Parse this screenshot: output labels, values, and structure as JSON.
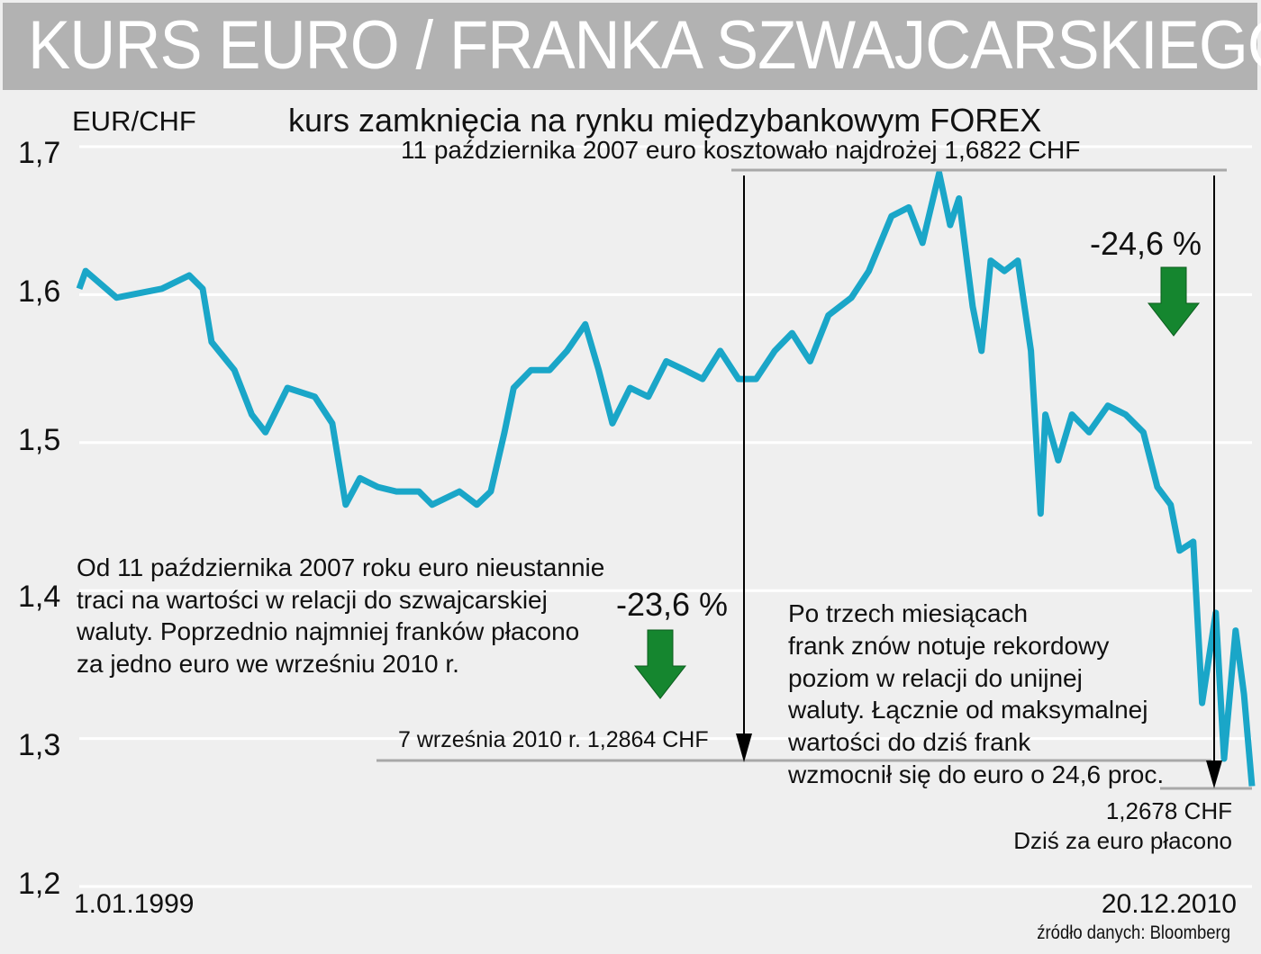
{
  "chart_data": {
    "type": "line",
    "title": "KURS EURO / FRANKA SZWAJCARSKIEGO",
    "subtitle": "kurs zamknięcia na rynku międzybankowym FOREX",
    "ylabel": "EUR/CHF",
    "ylim": [
      1.2,
      1.7
    ],
    "yticks": [
      "1,7",
      "1,6",
      "1,5",
      "1,4",
      "1,3",
      "1,2"
    ],
    "ytick_values": [
      1.7,
      1.6,
      1.5,
      1.4,
      1.3,
      1.2
    ],
    "x_start_label": "1.01.1999",
    "x_end_label": "20.12.2010",
    "xlim": [
      "1999-01-01",
      "2010-12-20"
    ],
    "grid": true,
    "line_color": "#1aa6c8",
    "series": [
      {
        "x": [
          "1999-01-01",
          "1999-01-25",
          "1999-05-20",
          "1999-11-05",
          "2000-02-15",
          "2000-04-05",
          "2000-05-08",
          "2000-08-01",
          "2000-10-05",
          "2000-11-25",
          "2001-02-15",
          "2001-05-28",
          "2001-08-01",
          "2001-09-20",
          "2001-11-12",
          "2002-01-18",
          "2002-03-28",
          "2002-06-20",
          "2002-08-08",
          "2002-11-18",
          "2003-01-22",
          "2003-03-15",
          "2003-05-05",
          "2003-06-08",
          "2003-08-12",
          "2003-10-20",
          "2003-12-24",
          "2004-03-01",
          "2004-04-20",
          "2004-06-10",
          "2004-08-15",
          "2004-10-22",
          "2004-12-28",
          "2005-03-07",
          "2005-05-12",
          "2005-07-17",
          "2005-09-23",
          "2005-11-28",
          "2006-02-05",
          "2006-04-11",
          "2006-06-17",
          "2006-08-24",
          "2006-11-18",
          "2007-01-22",
          "2007-04-16",
          "2007-06-20",
          "2007-08-10",
          "2007-10-11",
          "2007-11-21",
          "2007-12-24",
          "2008-02-13",
          "2008-03-17",
          "2008-04-20",
          "2008-06-10",
          "2008-07-30",
          "2008-09-17",
          "2008-10-23",
          "2008-11-10",
          "2008-12-28",
          "2009-02-17",
          "2009-04-22",
          "2009-07-01",
          "2009-09-05",
          "2009-11-10",
          "2010-01-01",
          "2010-02-20",
          "2010-03-25",
          "2010-05-15",
          "2010-06-17",
          "2010-08-07",
          "2010-09-07",
          "2010-10-20",
          "2010-11-20",
          "2010-12-20"
        ],
        "y": [
          1.604,
          1.616,
          1.598,
          1.604,
          1.613,
          1.604,
          1.568,
          1.549,
          1.519,
          1.507,
          1.537,
          1.531,
          1.513,
          1.458,
          1.476,
          1.47,
          1.467,
          1.467,
          1.458,
          1.467,
          1.458,
          1.467,
          1.507,
          1.537,
          1.549,
          1.549,
          1.562,
          1.58,
          1.549,
          1.513,
          1.537,
          1.531,
          1.555,
          1.549,
          1.543,
          1.562,
          1.543,
          1.543,
          1.562,
          1.574,
          1.555,
          1.586,
          1.598,
          1.616,
          1.653,
          1.659,
          1.635,
          1.6822,
          1.647,
          1.665,
          1.592,
          1.562,
          1.623,
          1.616,
          1.623,
          1.562,
          1.452,
          1.519,
          1.488,
          1.519,
          1.507,
          1.525,
          1.519,
          1.507,
          1.47,
          1.458,
          1.427,
          1.433,
          1.324,
          1.385,
          1.2864,
          1.373,
          1.33,
          1.2678
        ]
      }
    ],
    "annotations": {
      "peak": "11 października 2007 euro kosztowało najdrożej 1,6822 CHF",
      "left_text": [
        "Od 11 października 2007 roku euro nieustannie",
        "traci na wartości w relacji do szwajcarskiej",
        "waluty. Poprzednio najmniej franków płacono",
        "za jedno euro we wrześniu 2010 r."
      ],
      "left_pct": "-23,6 %",
      "min_label": "7 września 2010 r. 1,2864 CHF",
      "right_text": [
        "Po trzech miesiącach",
        "frank znów notuje rekordowy",
        "poziom w relacji do unijnej",
        "waluty. Łącznie od maksymalnej",
        "wartości do dziś frank",
        "wzmocnił się do euro o 24,6 proc."
      ],
      "right_pct": "-24,6 %",
      "today_value": "1,2678 CHF",
      "today_label": "Dziś za euro płacono",
      "arrow_color": "#15862f"
    },
    "source": "źródło danych: Bloomberg"
  }
}
